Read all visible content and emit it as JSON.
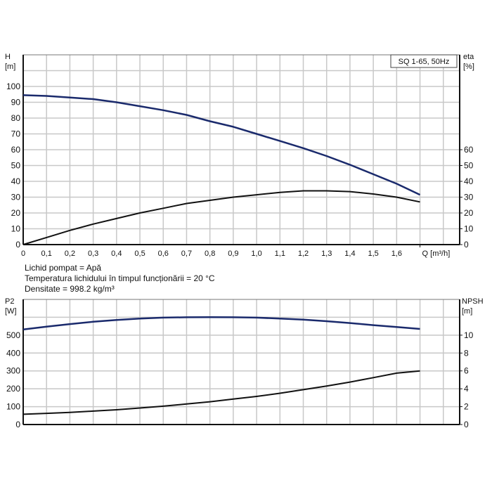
{
  "chart_data": [
    {
      "type": "line",
      "title": "SQ 1-65, 50Hz",
      "xlabel": "Q [m³/h]",
      "ylabel": "H\n[m]",
      "y2label": "eta\n[%]",
      "x_ticks": [
        "0",
        "0.1",
        "0.2",
        "0.3",
        "0.4",
        "0.5",
        "0.6",
        "0.7",
        "0.8",
        "0.9",
        "1.0",
        "1.1",
        "1.2",
        "1.3",
        "1.4",
        "1.5",
        "1.6"
      ],
      "y_ticks": [
        "0",
        "10",
        "20",
        "30",
        "40",
        "50",
        "60",
        "70",
        "80",
        "90",
        "100"
      ],
      "y2_ticks": [
        "0",
        "10",
        "20",
        "30",
        "40",
        "50",
        "60"
      ],
      "xlim": [
        0,
        1.87
      ],
      "ylim": [
        0,
        120
      ],
      "y2lim": [
        0,
        120
      ],
      "grid": true,
      "x": [
        0,
        0.1,
        0.2,
        0.3,
        0.4,
        0.5,
        0.6,
        0.7,
        0.8,
        0.9,
        1.0,
        1.1,
        1.2,
        1.3,
        1.4,
        1.5,
        1.6,
        1.7
      ],
      "series": [
        {
          "axis": "left",
          "color": "#1a2a6c",
          "values": [
            94.5,
            94,
            93,
            92,
            90,
            87.5,
            85,
            82,
            78,
            74.5,
            70,
            65.5,
            61,
            56,
            50.5,
            44.5,
            38.5,
            31.5
          ]
        },
        {
          "axis": "right",
          "color": "#111111",
          "values": [
            0,
            4.5,
            9,
            13,
            16.5,
            20,
            23,
            26,
            28,
            30,
            31.5,
            33,
            34,
            34,
            33.5,
            32,
            30,
            27
          ]
        }
      ]
    },
    {
      "type": "line",
      "ylabel": "P2\n[W]",
      "y2label": "NPSH\n[m]",
      "y_ticks": [
        "0",
        "100",
        "200",
        "300",
        "400",
        "500"
      ],
      "y2_ticks": [
        "0",
        "2",
        "4",
        "6",
        "8",
        "10"
      ],
      "xlim": [
        0,
        1.87
      ],
      "ylim": [
        0,
        700
      ],
      "y2lim": [
        0,
        14
      ],
      "grid": true,
      "x": [
        0,
        0.1,
        0.2,
        0.3,
        0.4,
        0.5,
        0.6,
        0.7,
        0.8,
        0.9,
        1.0,
        1.1,
        1.2,
        1.3,
        1.4,
        1.5,
        1.6,
        1.7
      ],
      "series": [
        {
          "axis": "left",
          "color": "#1a2a6c",
          "values": [
            532,
            548,
            562,
            575,
            585,
            593,
            598,
            600,
            601,
            600,
            598,
            593,
            587,
            578,
            568,
            556,
            546,
            535
          ]
        },
        {
          "axis": "right",
          "color": "#111111",
          "values": [
            1.15,
            1.25,
            1.35,
            1.5,
            1.65,
            1.85,
            2.05,
            2.3,
            2.55,
            2.85,
            3.15,
            3.5,
            3.9,
            4.3,
            4.75,
            5.25,
            5.75,
            6.0
          ]
        }
      ]
    }
  ],
  "notes": [
    "Lichid pompat = Apă",
    "Temperatura lichidului în timpul funcționării = 20 °C",
    "Densitate = 998.2 kg/m³"
  ]
}
